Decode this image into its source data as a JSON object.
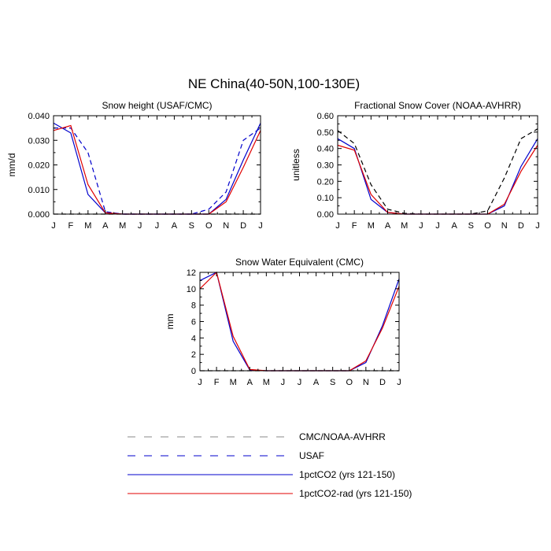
{
  "figure_title": "NE China(40-50N,100-130E)",
  "months": [
    "J",
    "F",
    "M",
    "A",
    "M",
    "J",
    "J",
    "A",
    "S",
    "O",
    "N",
    "D",
    "J"
  ],
  "colors": {
    "cmc_noaa": "#000000",
    "usaf": "#0000cc",
    "pct_co2": "#0000cc",
    "pct_co2_rad": "#e00000",
    "legend_dash": "#8a8a8a"
  },
  "legend": [
    {
      "key": "cmc_noaa",
      "label": "CMC/NOAA-AVHRR",
      "style": "dashed"
    },
    {
      "key": "usaf",
      "label": "USAF",
      "style": "dashed"
    },
    {
      "key": "pct_co2",
      "label": "1pctCO2 (yrs 121-150)",
      "style": "solid"
    },
    {
      "key": "pct_co2_rad",
      "label": "1pctCO2-rad (yrs 121-150)",
      "style": "solid"
    }
  ],
  "chart_data": [
    {
      "type": "line",
      "title": "Snow height (USAF/CMC)",
      "ylabel": "mm/d",
      "xlabel": "",
      "x": [
        "J",
        "F",
        "M",
        "A",
        "M",
        "J",
        "J",
        "A",
        "S",
        "O",
        "N",
        "D",
        "J"
      ],
      "ylim": [
        0,
        0.04
      ],
      "yticks": [
        "0.000",
        "0.010",
        "0.020",
        "0.030",
        "0.040"
      ],
      "series": [
        {
          "key": "cmc_noaa",
          "dashed": true,
          "values": [
            0,
            0,
            0,
            0,
            0,
            0,
            0,
            0,
            0,
            0,
            0,
            0,
            0
          ]
        },
        {
          "key": "usaf",
          "dashed": true,
          "values": [
            0.035,
            0.035,
            0.025,
            0.001,
            0,
            0,
            0,
            0,
            0,
            0.002,
            0.009,
            0.03,
            0.035
          ]
        },
        {
          "key": "pct_co2",
          "dashed": false,
          "values": [
            0.037,
            0.033,
            0.008,
            0.0005,
            0,
            0,
            0,
            0,
            0,
            0,
            0.006,
            0.022,
            0.037
          ]
        },
        {
          "key": "pct_co2_rad",
          "dashed": false,
          "values": [
            0.034,
            0.036,
            0.012,
            0.0005,
            0,
            0,
            0,
            0,
            0,
            0,
            0.005,
            0.019,
            0.034
          ]
        }
      ]
    },
    {
      "type": "line",
      "title": "Fractional Snow Cover (NOAA-AVHRR)",
      "ylabel": "unitless",
      "xlabel": "",
      "x": [
        "J",
        "F",
        "M",
        "A",
        "M",
        "J",
        "J",
        "A",
        "S",
        "O",
        "N",
        "D",
        "J"
      ],
      "ylim": [
        0,
        0.6
      ],
      "yticks": [
        "0.00",
        "0.10",
        "0.20",
        "0.30",
        "0.40",
        "0.50",
        "0.60"
      ],
      "series": [
        {
          "key": "cmc_noaa",
          "dashed": true,
          "values": [
            0.51,
            0.43,
            0.18,
            0.03,
            0.005,
            0,
            0,
            0,
            0,
            0.02,
            0.22,
            0.46,
            0.52
          ]
        },
        {
          "key": "pct_co2",
          "dashed": false,
          "values": [
            0.46,
            0.4,
            0.09,
            0.01,
            0,
            0,
            0,
            0,
            0,
            0,
            0.05,
            0.29,
            0.46
          ]
        },
        {
          "key": "pct_co2_rad",
          "dashed": false,
          "values": [
            0.42,
            0.39,
            0.12,
            0.01,
            0,
            0,
            0,
            0,
            0,
            0,
            0.06,
            0.26,
            0.42
          ]
        }
      ]
    },
    {
      "type": "line",
      "title": "Snow Water Equivalent (CMC)",
      "ylabel": "mm",
      "xlabel": "",
      "x": [
        "J",
        "F",
        "M",
        "A",
        "M",
        "J",
        "J",
        "A",
        "S",
        "O",
        "N",
        "D",
        "J"
      ],
      "ylim": [
        0,
        12
      ],
      "yticks": [
        "0",
        "2",
        "4",
        "6",
        "8",
        "10",
        "12"
      ],
      "series": [
        {
          "key": "cmc_noaa",
          "dashed": true,
          "values": [
            0,
            0,
            0,
            0,
            0,
            0,
            0,
            0,
            0,
            0,
            0,
            0,
            0
          ]
        },
        {
          "key": "pct_co2",
          "dashed": false,
          "values": [
            11,
            12,
            3.6,
            0.1,
            0,
            0,
            0,
            0,
            0,
            0,
            1,
            5.5,
            11.2
          ]
        },
        {
          "key": "pct_co2_rad",
          "dashed": false,
          "values": [
            10,
            12,
            4.2,
            0.15,
            0,
            0,
            0,
            0,
            0,
            0,
            1.2,
            5.2,
            10.3
          ]
        }
      ]
    }
  ]
}
